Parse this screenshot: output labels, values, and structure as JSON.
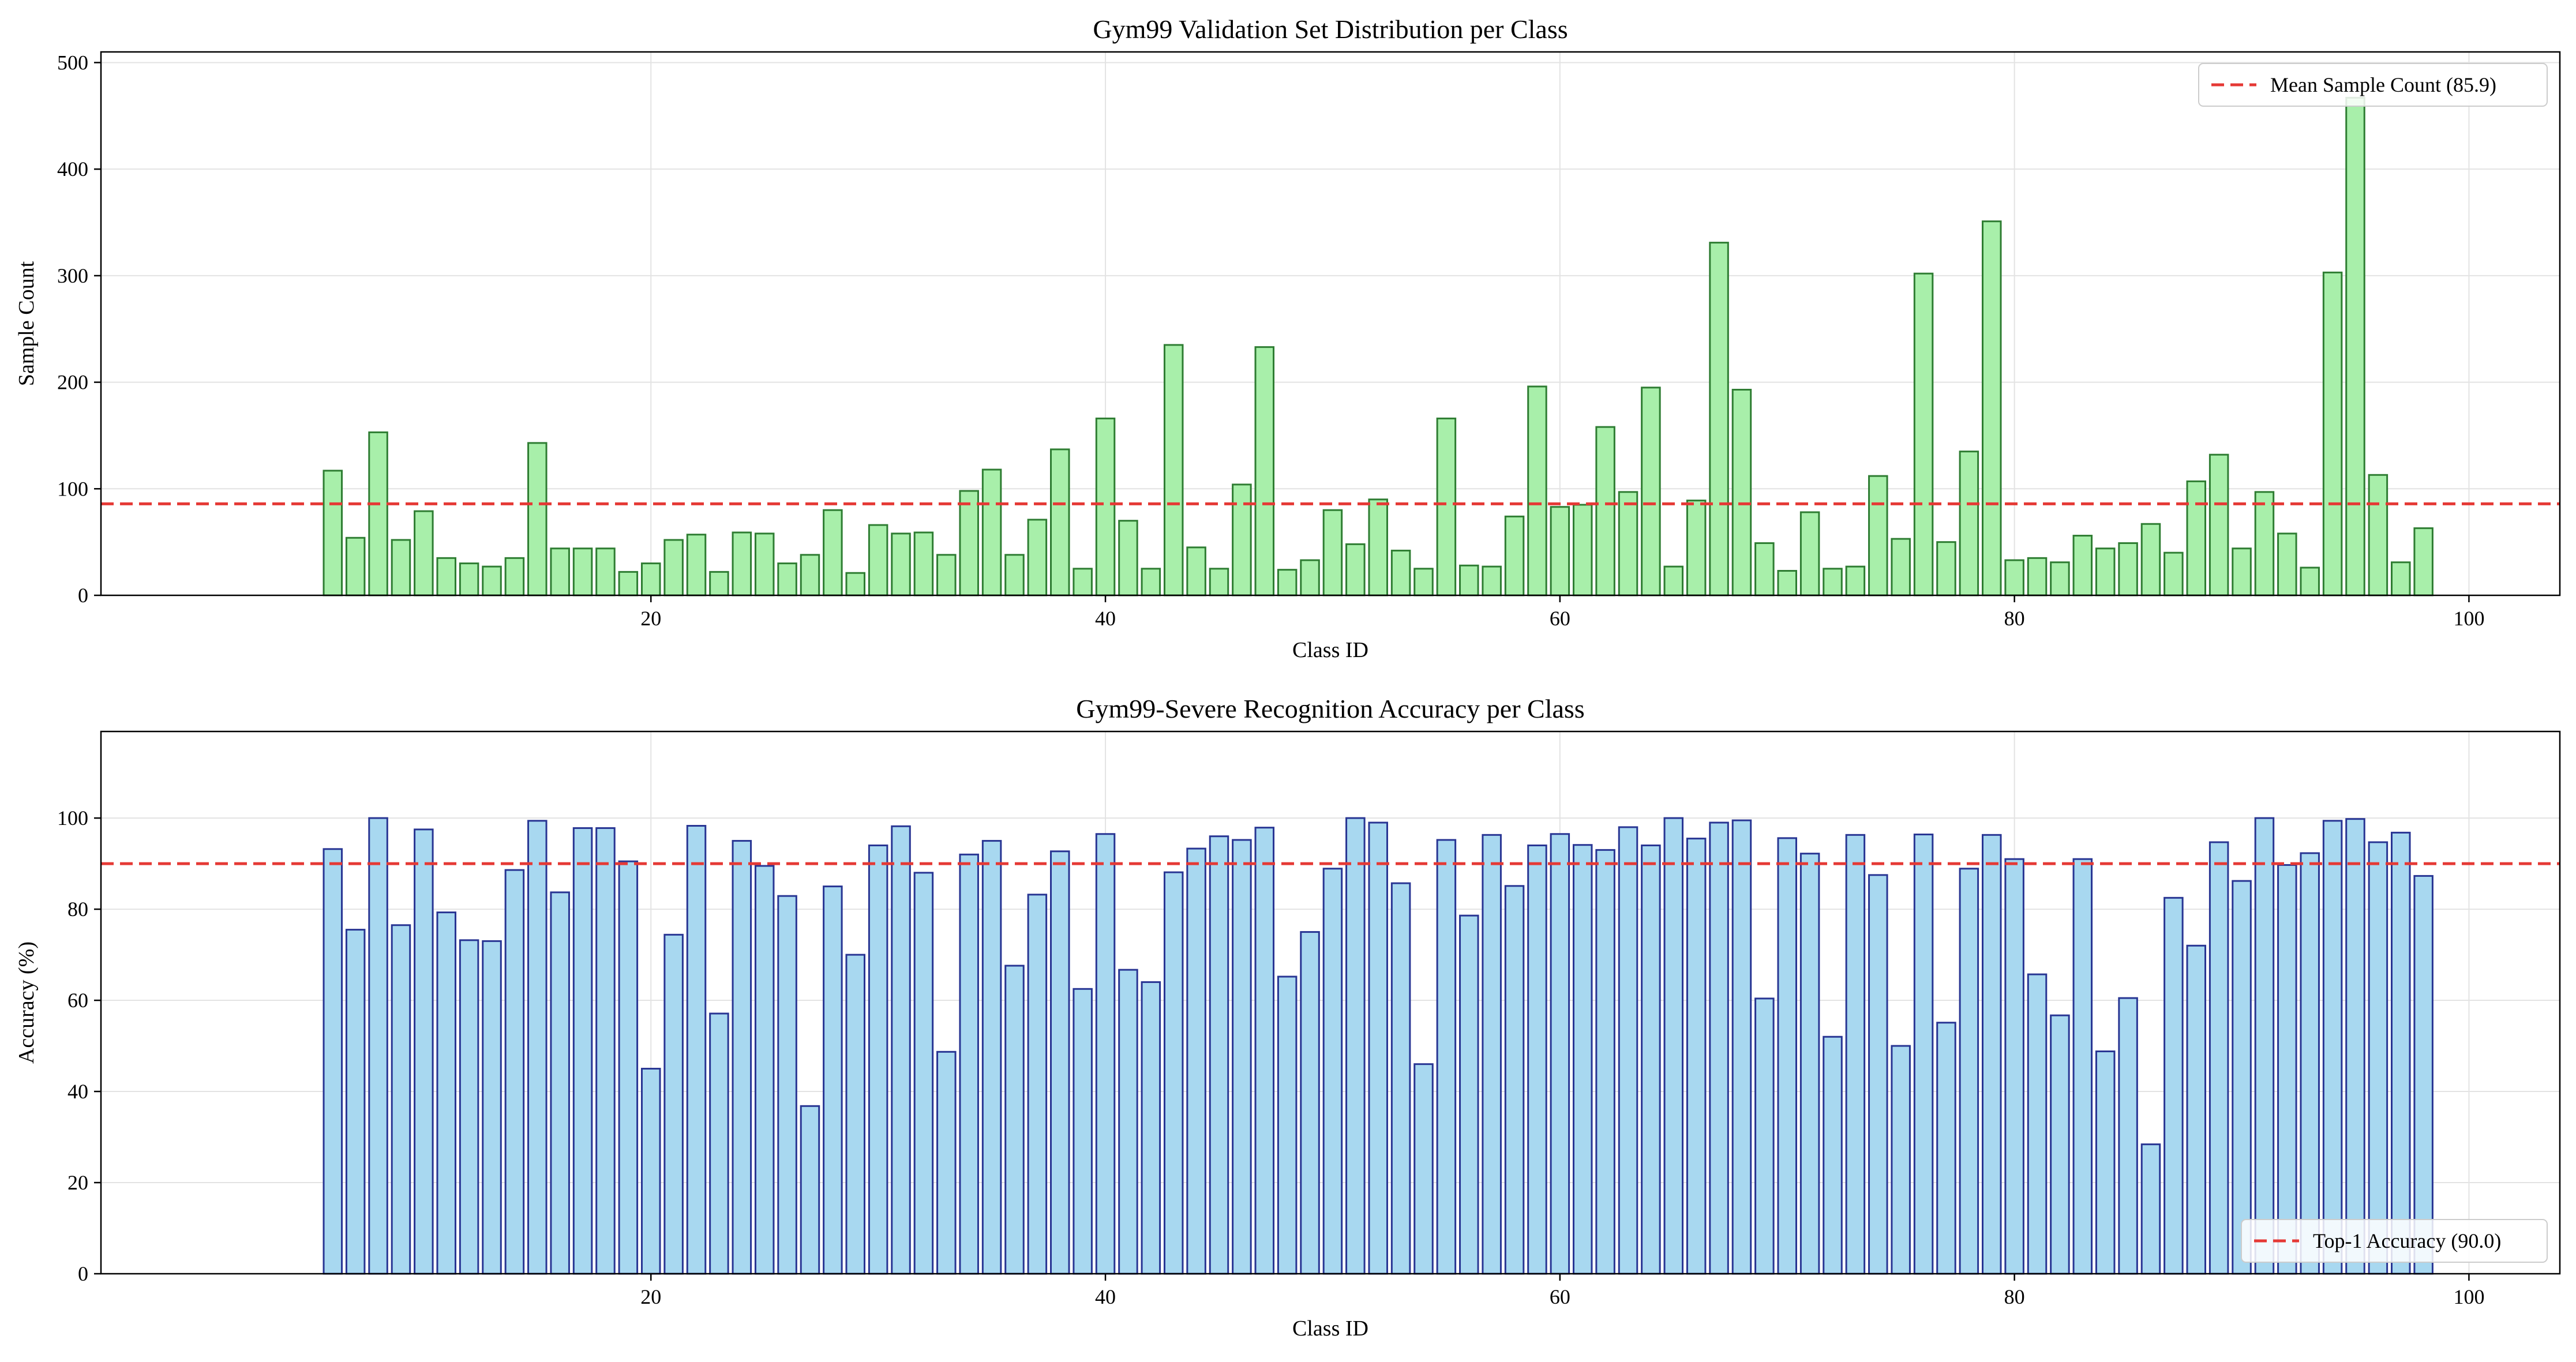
{
  "chart_data": [
    {
      "type": "bar",
      "title": "Gym99 Validation Set Distribution per Class",
      "xlabel": "Class ID",
      "ylabel": "Sample Count",
      "xlim": [
        -4.2,
        104
      ],
      "ylim": [
        0,
        510
      ],
      "x_ticks": [
        20,
        40,
        60,
        80,
        100
      ],
      "y_ticks": [
        0,
        100,
        200,
        300,
        400,
        500
      ],
      "grid": true,
      "legend_position": "top-right",
      "bar_fill": "#a8efaa",
      "bar_edge": "#2e7d32",
      "reference_line": {
        "label": "Mean Sample Count (85.9)",
        "value": 85.9,
        "color": "#e53935"
      },
      "x": [
        6,
        7,
        8,
        9,
        10,
        11,
        12,
        13,
        14,
        15,
        16,
        17,
        18,
        19,
        20,
        21,
        22,
        23,
        24,
        25,
        26,
        27,
        28,
        29,
        30,
        31,
        32,
        33,
        34,
        35,
        36,
        37,
        38,
        39,
        40,
        41,
        42,
        43,
        44,
        45,
        46,
        47,
        48,
        49,
        50,
        51,
        52,
        53,
        54,
        55,
        56,
        57,
        58,
        59,
        60,
        61,
        62,
        63,
        64,
        65,
        66,
        67,
        68,
        69,
        70,
        71,
        72,
        73,
        74,
        75,
        76,
        77,
        78,
        79,
        80,
        81,
        82,
        83,
        84,
        85,
        86,
        87,
        88,
        89,
        90,
        91,
        92,
        93,
        94,
        95,
        96,
        97,
        98
      ],
      "values": [
        117,
        54,
        153,
        52,
        79,
        35,
        30,
        27,
        35,
        143,
        44,
        44,
        44,
        22,
        30,
        52,
        57,
        22,
        59,
        58,
        30,
        38,
        80,
        21,
        66,
        58,
        59,
        38,
        98,
        118,
        38,
        71,
        137,
        25,
        166,
        70,
        25,
        235,
        45,
        25,
        104,
        233,
        24,
        33,
        80,
        48,
        90,
        42,
        25,
        166,
        28,
        27,
        74,
        196,
        83,
        85,
        158,
        97,
        195,
        27,
        89,
        331,
        193,
        49,
        23,
        78,
        25,
        27,
        112,
        53,
        302,
        50,
        135,
        351,
        33,
        35,
        31,
        56,
        44,
        49,
        67,
        40,
        107,
        132,
        44,
        97,
        58,
        26,
        303,
        467,
        113,
        31,
        63
      ]
    },
    {
      "type": "bar",
      "title": "Gym99-Severe Recognition Accuracy per Class",
      "xlabel": "Class ID",
      "ylabel": "Accuracy (%)",
      "xlim": [
        -4.2,
        104
      ],
      "ylim": [
        0,
        119
      ],
      "x_ticks": [
        20,
        40,
        60,
        80,
        100
      ],
      "y_ticks": [
        0,
        20,
        40,
        60,
        80,
        100
      ],
      "grid": true,
      "legend_position": "bottom-right",
      "bar_fill": "#a8d8f0",
      "bar_edge": "#283593",
      "reference_line": {
        "label": "Top-1 Accuracy (90.0)",
        "value": 90.0,
        "color": "#e53935"
      },
      "x": [
        6,
        7,
        8,
        9,
        10,
        11,
        12,
        13,
        14,
        15,
        16,
        17,
        18,
        19,
        20,
        21,
        22,
        23,
        24,
        25,
        26,
        27,
        28,
        29,
        30,
        31,
        32,
        33,
        34,
        35,
        36,
        37,
        38,
        39,
        40,
        41,
        42,
        43,
        44,
        45,
        46,
        47,
        48,
        49,
        50,
        51,
        52,
        53,
        54,
        55,
        56,
        57,
        58,
        59,
        60,
        61,
        62,
        63,
        64,
        65,
        66,
        67,
        68,
        69,
        70,
        71,
        72,
        73,
        74,
        75,
        76,
        77,
        78,
        79,
        80,
        81,
        82,
        83,
        84,
        85,
        86,
        87,
        88,
        89,
        90,
        91,
        92,
        93,
        94,
        95,
        96,
        97,
        98
      ],
      "values": [
        93.2,
        75.5,
        100,
        76.5,
        97.5,
        79.3,
        73.2,
        73,
        88.6,
        99.4,
        83.7,
        97.8,
        97.8,
        90.5,
        45,
        74.4,
        98.3,
        57.1,
        95,
        89.5,
        82.9,
        36.8,
        85,
        70,
        94,
        98.2,
        88,
        48.7,
        92,
        95,
        67.6,
        83.2,
        92.7,
        62.5,
        96.5,
        66.7,
        64,
        88.1,
        93.3,
        96,
        95.2,
        97.9,
        65.2,
        75,
        88.9,
        100,
        99,
        85.7,
        46,
        95.2,
        78.6,
        96.3,
        85.1,
        94,
        96.5,
        94.1,
        93,
        98,
        94,
        100,
        95.5,
        99,
        99.5,
        60.4,
        95.6,
        92.2,
        52,
        96.3,
        87.5,
        50,
        96.4,
        55.1,
        88.9,
        96.3,
        91,
        65.7,
        56.7,
        91,
        48.8,
        60.5,
        28.4,
        82.5,
        72,
        94.7,
        86.2,
        100,
        89.7,
        92.3,
        99.4,
        99.8,
        94.7,
        96.8,
        87.3
      ]
    }
  ]
}
